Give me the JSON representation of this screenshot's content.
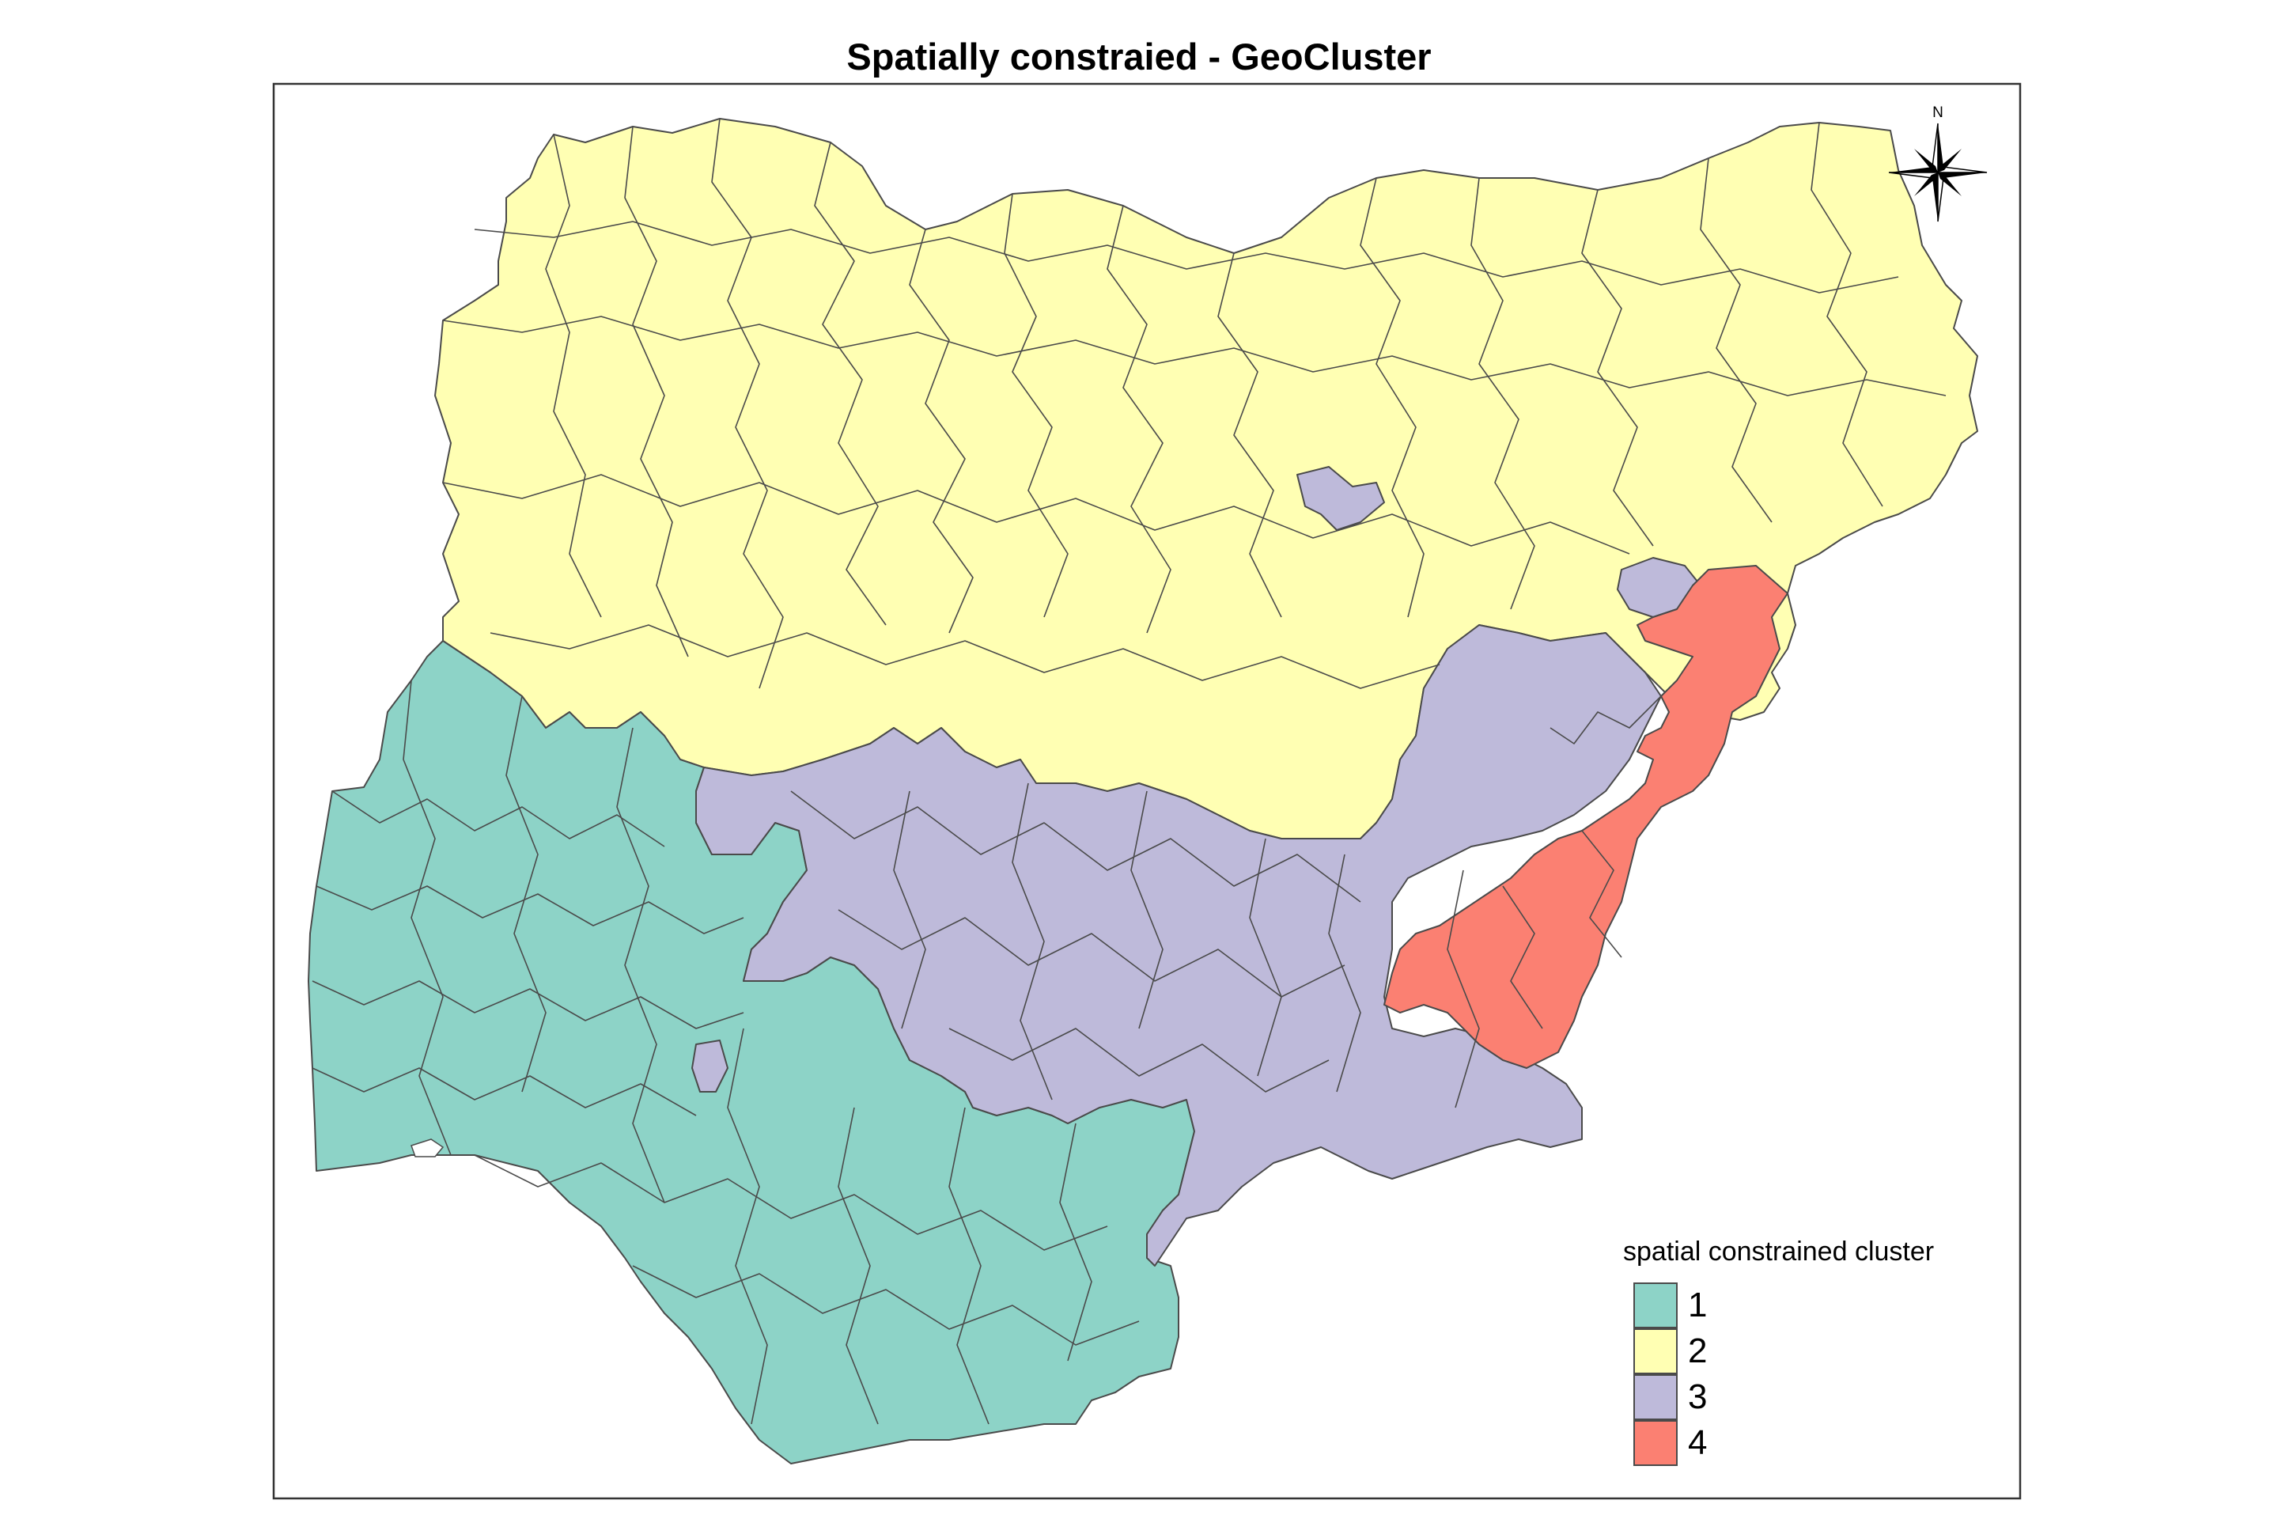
{
  "title": "Spatially constraied - GeoCluster",
  "compass": {
    "north_label": "N",
    "icon": "north-arrow-icon"
  },
  "legend": {
    "title": "spatial constrained cluster",
    "items": [
      {
        "label": "1",
        "color": "#8DD3C7"
      },
      {
        "label": "2",
        "color": "#FFFFB3"
      },
      {
        "label": "3",
        "color": "#BEBADA"
      },
      {
        "label": "4",
        "color": "#FB8072"
      }
    ]
  },
  "colors": {
    "border": "#4a4a4a",
    "frame": "#333333"
  }
}
